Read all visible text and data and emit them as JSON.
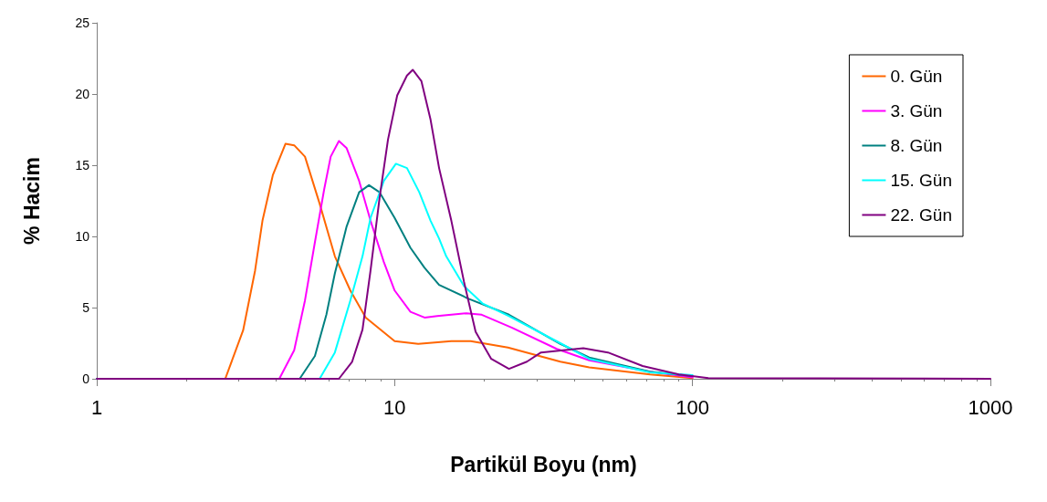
{
  "chart_data": {
    "type": "line",
    "xlabel": "Partikül Boyu (nm)",
    "ylabel": "% Hacim",
    "log": "x",
    "xlim": [
      1,
      1000
    ],
    "xticks": [
      1,
      10,
      100,
      1000
    ],
    "ylim": [
      0,
      25
    ],
    "yticks": [
      0,
      5,
      10,
      15,
      20,
      25
    ],
    "grid": false,
    "legend": "top right",
    "marker": "none",
    "line_style": "solid",
    "series": [
      {
        "name": "0. Gün",
        "color": "#ff6600",
        "x": [
          1,
          2.7,
          3.1,
          3.4,
          3.6,
          3.9,
          4.3,
          4.6,
          5,
          5.6,
          6.3,
          7.1,
          8,
          10,
          12,
          15.5,
          18,
          24,
          36,
          45,
          72,
          100
        ],
        "values": [
          0,
          0,
          3.4,
          7.6,
          11.1,
          14.3,
          16.5,
          16.4,
          15.6,
          12.3,
          8.6,
          6.2,
          4.3,
          2.65,
          2.45,
          2.65,
          2.65,
          2.2,
          1.2,
          0.8,
          0.3,
          0.05
        ]
      },
      {
        "name": "3. Gün",
        "color": "#ff00ff",
        "x": [
          1,
          4.1,
          4.6,
          5,
          5.4,
          5.8,
          6.1,
          6.5,
          6.9,
          7.6,
          8.3,
          9.2,
          10,
          11.3,
          12.6,
          13.9,
          17.4,
          19.6,
          24.7,
          35,
          45,
          72,
          100
        ],
        "values": [
          0,
          0,
          2,
          5.5,
          9.6,
          13.3,
          15.6,
          16.7,
          16.2,
          13.9,
          11.1,
          8.2,
          6.2,
          4.7,
          4.3,
          4.4,
          4.6,
          4.5,
          3.6,
          2.1,
          1.3,
          0.5,
          0.1
        ]
      },
      {
        "name": "8. Gün",
        "color": "#008080",
        "x": [
          1,
          4.8,
          5.4,
          5.9,
          6.3,
          6.9,
          7.6,
          8.2,
          8.9,
          10,
          11.3,
          12.6,
          14.1,
          17.8,
          24.2,
          36,
          45,
          72,
          100
        ],
        "values": [
          0,
          0,
          1.6,
          4.5,
          7.4,
          10.7,
          13.1,
          13.6,
          13.1,
          11.3,
          9.2,
          7.8,
          6.6,
          5.6,
          4.5,
          2.45,
          1.5,
          0.5,
          0.2
        ]
      },
      {
        "name": "15. Gün",
        "color": "#00ffff",
        "x": [
          1,
          5.6,
          6.3,
          7.1,
          7.8,
          8.3,
          9.2,
          10.1,
          11,
          12.1,
          13.2,
          14.1,
          14.9,
          17.1,
          19.7,
          24.2,
          36,
          45,
          72,
          100
        ],
        "values": [
          0,
          0,
          1.85,
          5.5,
          8.6,
          11.3,
          13.9,
          15.1,
          14.8,
          13.1,
          11.1,
          9.85,
          8.6,
          6.5,
          5.3,
          4.4,
          2.5,
          1.4,
          0.45,
          0.25
        ]
      },
      {
        "name": "22. Gün",
        "color": "#800080",
        "x": [
          1,
          6.5,
          7.2,
          7.8,
          8.3,
          8.9,
          9.5,
          10.2,
          11,
          11.5,
          12.3,
          13.2,
          14.1,
          15.5,
          17.1,
          18.7,
          21.1,
          24.2,
          27.8,
          31,
          43,
          52,
          68,
          90,
          113,
          1000
        ],
        "values": [
          0,
          0,
          1.2,
          3.45,
          7.6,
          12.7,
          16.8,
          19.9,
          21.3,
          21.7,
          20.9,
          18.2,
          14.8,
          11.1,
          6.8,
          3.3,
          1.4,
          0.7,
          1.2,
          1.85,
          2.15,
          1.85,
          0.9,
          0.3,
          0.05,
          0
        ]
      }
    ]
  }
}
